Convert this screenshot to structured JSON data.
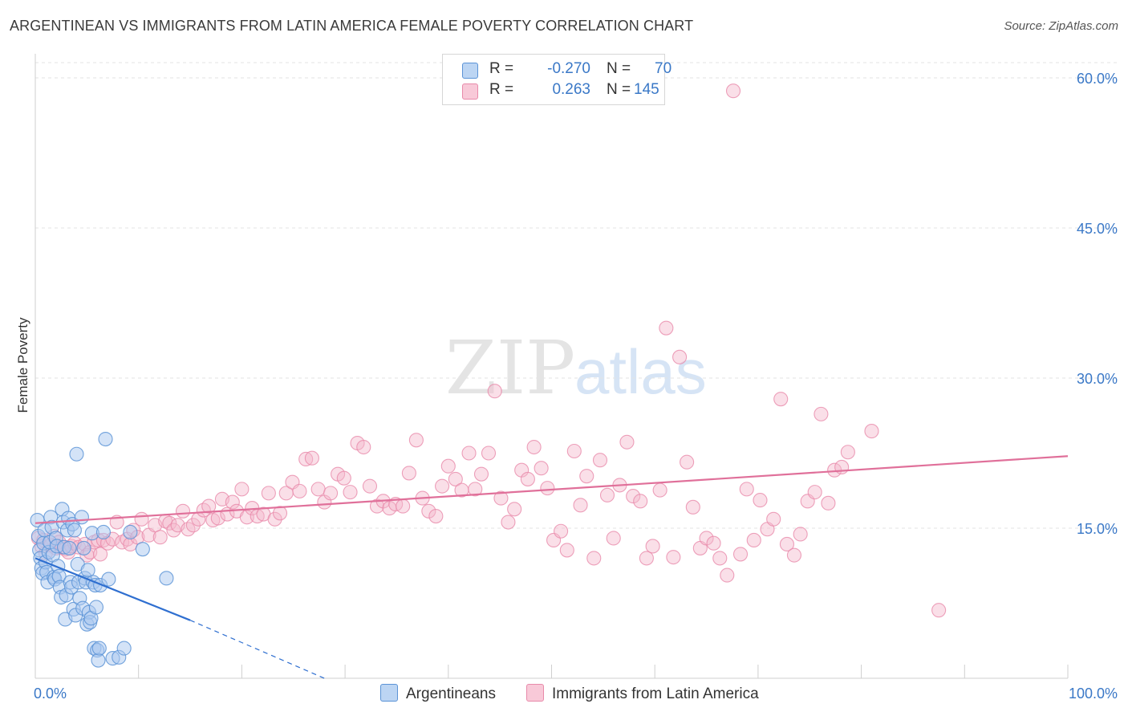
{
  "title": "ARGENTINEAN VS IMMIGRANTS FROM LATIN AMERICA FEMALE POVERTY CORRELATION CHART",
  "source": "Source: ZipAtlas.com",
  "colors": {
    "blue_fill": "#a9c8f0",
    "blue_stroke": "#5b93d6",
    "blue_line": "#2f6fd0",
    "pink_fill": "#f5b8cc",
    "pink_stroke": "#e88aaa",
    "pink_line": "#e0709a",
    "tick_text": "#3a78c7"
  },
  "legend": {
    "rows": [
      {
        "r_label": "R =",
        "r_value": "-0.270",
        "n_label": "N =",
        "n_value": "70"
      },
      {
        "r_label": "R =",
        "r_value": "0.263",
        "n_label": "N =",
        "n_value": "145"
      }
    ]
  },
  "bottom_legend": [
    "Argentineans",
    "Immigrants from Latin America"
  ],
  "chart_data": {
    "type": "scatter",
    "xlabel": "",
    "ylabel": "Female Poverty",
    "xlim": [
      0,
      100
    ],
    "ylim": [
      0,
      60
    ],
    "x_tick_labels": [
      "0.0%",
      "100.0%"
    ],
    "y_ticks": [
      15,
      30,
      45,
      60
    ],
    "y_tick_labels": [
      "15.0%",
      "30.0%",
      "45.0%",
      "60.0%"
    ],
    "grid": "horizontal dashed",
    "watermark": "ZIPatlas",
    "series": [
      {
        "name": "Argentineans",
        "points": [
          [
            0.2,
            15.8
          ],
          [
            0.3,
            14.2
          ],
          [
            0.4,
            12.8
          ],
          [
            0.5,
            12.0
          ],
          [
            0.6,
            11.0
          ],
          [
            0.7,
            10.5
          ],
          [
            0.8,
            13.5
          ],
          [
            0.9,
            14.8
          ],
          [
            1.0,
            11.6
          ],
          [
            1.1,
            10.6
          ],
          [
            1.2,
            9.6
          ],
          [
            1.3,
            12.6
          ],
          [
            1.4,
            13.6
          ],
          [
            1.5,
            16.1
          ],
          [
            1.6,
            15.1
          ],
          [
            1.7,
            12.3
          ],
          [
            1.8,
            10.1
          ],
          [
            1.9,
            9.9
          ],
          [
            2.0,
            14.0
          ],
          [
            2.1,
            13.2
          ],
          [
            2.2,
            11.2
          ],
          [
            2.3,
            10.2
          ],
          [
            2.4,
            9.1
          ],
          [
            2.5,
            8.1
          ],
          [
            2.6,
            16.9
          ],
          [
            2.7,
            15.6
          ],
          [
            2.8,
            13.1
          ],
          [
            2.9,
            5.9
          ],
          [
            3.0,
            8.3
          ],
          [
            3.1,
            14.8
          ],
          [
            3.2,
            16.0
          ],
          [
            3.3,
            13.0
          ],
          [
            3.4,
            9.6
          ],
          [
            3.5,
            9.1
          ],
          [
            3.6,
            15.4
          ],
          [
            3.7,
            6.9
          ],
          [
            3.8,
            14.8
          ],
          [
            3.9,
            6.3
          ],
          [
            4.0,
            22.4
          ],
          [
            4.1,
            11.4
          ],
          [
            4.2,
            9.6
          ],
          [
            4.3,
            8.0
          ],
          [
            4.5,
            16.1
          ],
          [
            4.6,
            7.0
          ],
          [
            4.7,
            13.0
          ],
          [
            4.8,
            10.0
          ],
          [
            4.9,
            9.6
          ],
          [
            5.0,
            5.4
          ],
          [
            5.1,
            10.8
          ],
          [
            5.2,
            6.6
          ],
          [
            5.3,
            5.6
          ],
          [
            5.4,
            6.0
          ],
          [
            5.5,
            14.5
          ],
          [
            5.6,
            9.6
          ],
          [
            5.7,
            3.0
          ],
          [
            5.8,
            9.3
          ],
          [
            5.9,
            7.1
          ],
          [
            6.0,
            2.8
          ],
          [
            6.1,
            1.8
          ],
          [
            6.2,
            3.0
          ],
          [
            6.3,
            9.3
          ],
          [
            6.6,
            14.6
          ],
          [
            6.8,
            23.9
          ],
          [
            7.1,
            9.9
          ],
          [
            7.5,
            2.0
          ],
          [
            8.1,
            2.1
          ],
          [
            8.6,
            3.0
          ],
          [
            9.2,
            14.6
          ],
          [
            10.4,
            12.9
          ],
          [
            12.7,
            10.0
          ]
        ]
      },
      {
        "name": "Immigrants from Latin America",
        "points": [
          [
            0.3,
            14.0
          ],
          [
            0.6,
            13.2
          ],
          [
            0.8,
            13.8
          ],
          [
            1.0,
            12.5
          ],
          [
            1.5,
            13.3
          ],
          [
            1.8,
            14.2
          ],
          [
            2.0,
            13.0
          ],
          [
            2.3,
            13.6
          ],
          [
            2.6,
            13.1
          ],
          [
            2.9,
            12.9
          ],
          [
            3.2,
            12.6
          ],
          [
            3.5,
            13.2
          ],
          [
            3.8,
            13.5
          ],
          [
            4.2,
            13.1
          ],
          [
            4.8,
            13.4
          ],
          [
            5.0,
            12.3
          ],
          [
            5.3,
            12.6
          ],
          [
            5.7,
            13.6
          ],
          [
            6.1,
            13.8
          ],
          [
            6.3,
            12.4
          ],
          [
            6.6,
            13.8
          ],
          [
            7.0,
            13.5
          ],
          [
            7.5,
            13.9
          ],
          [
            7.9,
            15.6
          ],
          [
            8.4,
            13.6
          ],
          [
            8.9,
            13.9
          ],
          [
            9.2,
            13.4
          ],
          [
            9.5,
            14.8
          ],
          [
            9.9,
            14.1
          ],
          [
            10.3,
            15.9
          ],
          [
            11.0,
            14.3
          ],
          [
            11.6,
            15.3
          ],
          [
            12.1,
            14.1
          ],
          [
            12.6,
            15.7
          ],
          [
            13.0,
            15.5
          ],
          [
            13.4,
            14.8
          ],
          [
            13.8,
            15.3
          ],
          [
            14.3,
            16.7
          ],
          [
            14.8,
            14.9
          ],
          [
            15.3,
            15.3
          ],
          [
            15.8,
            15.9
          ],
          [
            16.3,
            16.8
          ],
          [
            16.8,
            17.2
          ],
          [
            17.2,
            15.8
          ],
          [
            17.7,
            16.0
          ],
          [
            18.1,
            17.9
          ],
          [
            18.6,
            16.4
          ],
          [
            19.1,
            17.6
          ],
          [
            19.5,
            16.7
          ],
          [
            20.0,
            18.9
          ],
          [
            20.5,
            16.1
          ],
          [
            21.0,
            17.0
          ],
          [
            21.5,
            16.2
          ],
          [
            22.1,
            16.4
          ],
          [
            22.6,
            18.5
          ],
          [
            23.2,
            15.9
          ],
          [
            23.7,
            16.5
          ],
          [
            24.3,
            18.5
          ],
          [
            24.9,
            19.6
          ],
          [
            25.6,
            18.7
          ],
          [
            26.2,
            21.9
          ],
          [
            26.8,
            22.0
          ],
          [
            27.4,
            18.9
          ],
          [
            28.0,
            17.6
          ],
          [
            28.6,
            18.5
          ],
          [
            29.3,
            20.4
          ],
          [
            29.9,
            20.0
          ],
          [
            30.5,
            18.6
          ],
          [
            31.2,
            23.5
          ],
          [
            31.8,
            23.1
          ],
          [
            32.4,
            19.2
          ],
          [
            33.1,
            17.2
          ],
          [
            33.7,
            17.7
          ],
          [
            34.3,
            17.0
          ],
          [
            34.9,
            17.4
          ],
          [
            35.6,
            17.2
          ],
          [
            36.2,
            20.5
          ],
          [
            36.9,
            23.8
          ],
          [
            37.5,
            18.0
          ],
          [
            38.1,
            16.7
          ],
          [
            38.8,
            16.2
          ],
          [
            39.4,
            19.2
          ],
          [
            40.0,
            21.2
          ],
          [
            40.7,
            19.9
          ],
          [
            41.3,
            18.8
          ],
          [
            42.0,
            22.5
          ],
          [
            42.6,
            18.9
          ],
          [
            43.2,
            20.4
          ],
          [
            43.9,
            22.5
          ],
          [
            44.5,
            28.7
          ],
          [
            45.1,
            18.0
          ],
          [
            45.8,
            15.6
          ],
          [
            46.4,
            16.9
          ],
          [
            47.1,
            20.8
          ],
          [
            47.7,
            19.9
          ],
          [
            48.3,
            23.1
          ],
          [
            49.0,
            21.0
          ],
          [
            49.6,
            19.0
          ],
          [
            50.2,
            13.8
          ],
          [
            50.9,
            14.7
          ],
          [
            51.5,
            12.8
          ],
          [
            52.2,
            22.7
          ],
          [
            52.8,
            17.3
          ],
          [
            53.4,
            20.2
          ],
          [
            54.1,
            12.0
          ],
          [
            54.7,
            21.8
          ],
          [
            55.4,
            18.3
          ],
          [
            56.0,
            14.0
          ],
          [
            56.6,
            19.3
          ],
          [
            57.3,
            23.6
          ],
          [
            57.9,
            18.2
          ],
          [
            58.6,
            17.7
          ],
          [
            59.2,
            12.0
          ],
          [
            59.8,
            13.2
          ],
          [
            60.5,
            18.8
          ],
          [
            61.1,
            35.0
          ],
          [
            61.8,
            12.1
          ],
          [
            62.4,
            32.1
          ],
          [
            63.1,
            21.6
          ],
          [
            63.7,
            17.1
          ],
          [
            64.4,
            13.0
          ],
          [
            65.0,
            14.0
          ],
          [
            65.7,
            13.5
          ],
          [
            66.3,
            12.0
          ],
          [
            67.0,
            10.3
          ],
          [
            67.6,
            58.7
          ],
          [
            68.3,
            12.4
          ],
          [
            68.9,
            18.9
          ],
          [
            69.6,
            13.8
          ],
          [
            70.2,
            17.8
          ],
          [
            70.9,
            14.9
          ],
          [
            71.5,
            15.9
          ],
          [
            72.2,
            27.9
          ],
          [
            72.8,
            13.4
          ],
          [
            73.5,
            12.3
          ],
          [
            74.1,
            14.4
          ],
          [
            74.8,
            17.7
          ],
          [
            75.5,
            18.6
          ],
          [
            76.1,
            26.4
          ],
          [
            76.8,
            17.5
          ],
          [
            77.4,
            20.8
          ],
          [
            78.1,
            21.1
          ],
          [
            78.7,
            22.6
          ],
          [
            81.0,
            24.7
          ],
          [
            87.5,
            6.8
          ]
        ]
      }
    ],
    "trendlines": [
      {
        "series": "Argentineans",
        "solid": [
          [
            0,
            12.0
          ],
          [
            15,
            5.8
          ]
        ],
        "dashed": [
          [
            15,
            5.8
          ],
          [
            28,
            0
          ]
        ]
      },
      {
        "series": "Immigrants from Latin America",
        "solid": [
          [
            0,
            15.5
          ],
          [
            100,
            22.2
          ]
        ]
      }
    ]
  }
}
